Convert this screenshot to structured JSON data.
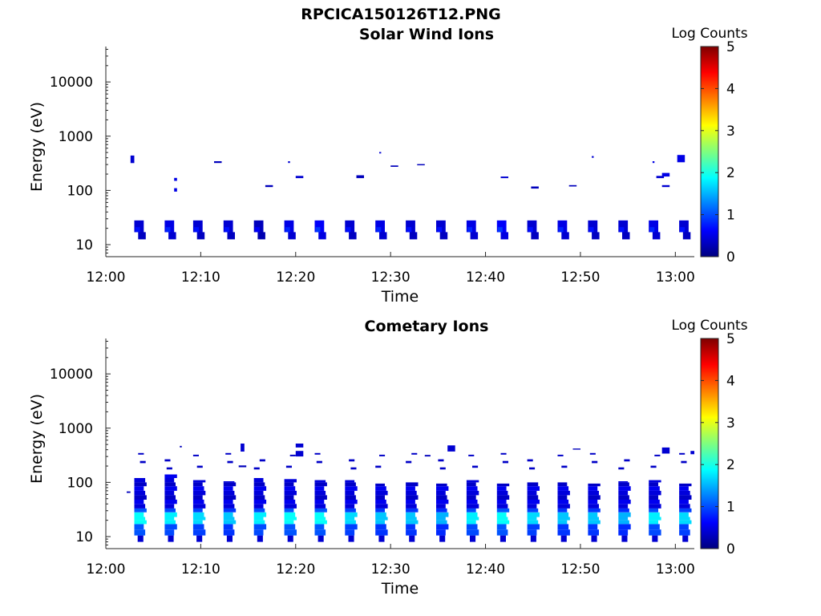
{
  "figure_title": "RPCICA150126T12.PNG",
  "colormap": [
    "#00007f",
    "#0000ff",
    "#007fff",
    "#00ffff",
    "#7fff7f",
    "#ffff00",
    "#ff7f00",
    "#ff0000",
    "#7f0000"
  ],
  "chart_data": [
    {
      "type": "heatmap",
      "title": "Solar Wind Ions",
      "xlabel": "Time",
      "ylabel": "Energy (eV)",
      "y_scale": "log",
      "x_range": [
        "12:00",
        "13:02"
      ],
      "y_range": [
        6,
        45000
      ],
      "x_ticks": [
        "12:00",
        "12:10",
        "12:20",
        "12:30",
        "12:40",
        "12:50",
        "13:00"
      ],
      "y_ticks": [
        "10",
        "100",
        "1000",
        "10000"
      ],
      "colorbar": {
        "label": "Log Counts",
        "range": [
          0,
          5
        ],
        "ticks": [
          "0",
          "1",
          "2",
          "3",
          "4",
          "5"
        ]
      },
      "blocks": [
        {
          "t0": "12:02:36",
          "t1": "12:03:00",
          "e0": 320,
          "e1": 440,
          "v": 0.4
        },
        {
          "t0": "12:07:12",
          "t1": "12:07:30",
          "e0": 150,
          "e1": 170,
          "v": 0.5
        },
        {
          "t0": "12:07:12",
          "t1": "12:07:30",
          "e0": 95,
          "e1": 110,
          "v": 0.5
        },
        {
          "t0": "12:11:24",
          "t1": "12:12:12",
          "e0": 320,
          "e1": 345,
          "v": 0.3
        },
        {
          "t0": "12:16:48",
          "t1": "12:17:36",
          "e0": 115,
          "e1": 125,
          "v": 0.3
        },
        {
          "t0": "12:19:12",
          "t1": "12:19:24",
          "e0": 320,
          "e1": 345,
          "v": 0.4
        },
        {
          "t0": "12:20:00",
          "t1": "12:20:48",
          "e0": 168,
          "e1": 185,
          "v": 0.4
        },
        {
          "t0": "12:26:24",
          "t1": "12:27:12",
          "e0": 168,
          "e1": 190,
          "v": 0.3
        },
        {
          "t0": "12:28:48",
          "t1": "12:29:00",
          "e0": 480,
          "e1": 510,
          "v": 0.4
        },
        {
          "t0": "12:30:00",
          "t1": "12:30:48",
          "e0": 272,
          "e1": 288,
          "v": 0.3
        },
        {
          "t0": "12:32:48",
          "t1": "12:33:36",
          "e0": 290,
          "e1": 305,
          "v": 0.3
        },
        {
          "t0": "12:41:36",
          "t1": "12:42:24",
          "e0": 168,
          "e1": 180,
          "v": 0.4
        },
        {
          "t0": "12:44:48",
          "t1": "12:45:36",
          "e0": 108,
          "e1": 118,
          "v": 0.3
        },
        {
          "t0": "12:48:48",
          "t1": "12:49:36",
          "e0": 118,
          "e1": 125,
          "v": 0.3
        },
        {
          "t0": "12:51:12",
          "t1": "12:51:24",
          "e0": 400,
          "e1": 430,
          "v": 0.4
        },
        {
          "t0": "12:57:36",
          "t1": "12:57:48",
          "e0": 320,
          "e1": 345,
          "v": 0.5
        },
        {
          "t0": "12:58:00",
          "t1": "12:58:48",
          "e0": 168,
          "e1": 185,
          "v": 0.4
        },
        {
          "t0": "12:58:36",
          "t1": "12:59:24",
          "e0": 180,
          "e1": 210,
          "v": 0.5
        },
        {
          "t0": "12:58:36",
          "t1": "12:59:24",
          "e0": 115,
          "e1": 125,
          "v": 0.4
        },
        {
          "t0": "13:00:12",
          "t1": "13:01:00",
          "e0": 330,
          "e1": 450,
          "v": 0.5
        }
      ],
      "low_band_starts": [
        "12:03:00",
        "12:06:12",
        "12:09:12",
        "12:12:24",
        "12:15:36",
        "12:18:48",
        "12:22:00",
        "12:25:12",
        "12:28:24",
        "12:31:36",
        "12:34:48",
        "12:38:00",
        "12:41:12",
        "12:44:24",
        "12:47:36",
        "12:50:48",
        "12:54:00",
        "12:57:12",
        "13:00:24"
      ],
      "low_band_levels": [
        0.4,
        0.5,
        0.4,
        0.4,
        0.3,
        0.5,
        0.6,
        0.4,
        0.5,
        0.4,
        0.4,
        0.5,
        0.6,
        0.4,
        0.5,
        0.4,
        0.4,
        0.5,
        0.4
      ]
    },
    {
      "type": "heatmap",
      "title": "Cometary Ions",
      "xlabel": "Time",
      "ylabel": "Energy (eV)",
      "y_scale": "log",
      "x_range": [
        "12:00",
        "13:02"
      ],
      "y_range": [
        6,
        45000
      ],
      "x_ticks": [
        "12:00",
        "12:10",
        "12:20",
        "12:30",
        "12:40",
        "12:50",
        "13:00"
      ],
      "y_ticks": [
        "10",
        "100",
        "1000",
        "10000"
      ],
      "colorbar": {
        "label": "Log Counts",
        "range": [
          0,
          5
        ],
        "ticks": [
          "0",
          "1",
          "2",
          "3",
          "4",
          "5"
        ]
      },
      "cycle_starts": [
        "12:03:00",
        "12:06:12",
        "12:09:12",
        "12:12:24",
        "12:15:36",
        "12:18:48",
        "12:22:00",
        "12:25:12",
        "12:28:24",
        "12:31:36",
        "12:34:48",
        "12:38:00",
        "12:41:12",
        "12:44:24",
        "12:47:36",
        "12:50:48",
        "12:54:00",
        "12:57:12",
        "13:00:24"
      ],
      "cycle_tops": [
        120,
        140,
        110,
        105,
        120,
        115,
        110,
        110,
        95,
        100,
        95,
        110,
        95,
        100,
        100,
        95,
        105,
        110,
        95
      ],
      "cycle_peaks": [
        1.9,
        1.8,
        1.7,
        1.6,
        1.8,
        1.9,
        1.9,
        1.7,
        1.6,
        1.6,
        1.5,
        1.8,
        1.9,
        1.7,
        1.6,
        1.6,
        1.5,
        1.8,
        1.7
      ],
      "blocks": [
        {
          "t0": "12:14:12",
          "t1": "12:14:36",
          "e0": 370,
          "e1": 520,
          "v": 0.4
        },
        {
          "t0": "12:14:00",
          "t1": "12:14:48",
          "e0": 190,
          "e1": 205,
          "v": 0.3
        },
        {
          "t0": "12:20:00",
          "t1": "12:20:48",
          "e0": 440,
          "e1": 520,
          "v": 0.4
        },
        {
          "t0": "12:20:00",
          "t1": "12:20:48",
          "e0": 300,
          "e1": 380,
          "v": 0.4
        },
        {
          "t0": "12:33:36",
          "t1": "12:34:12",
          "e0": 300,
          "e1": 320,
          "v": 0.3
        },
        {
          "t0": "12:36:00",
          "t1": "12:36:48",
          "e0": 370,
          "e1": 480,
          "v": 0.4
        },
        {
          "t0": "12:49:12",
          "t1": "12:50:00",
          "e0": 400,
          "e1": 420,
          "v": 0.3
        },
        {
          "t0": "12:58:36",
          "t1": "12:59:24",
          "e0": 340,
          "e1": 440,
          "v": 0.4
        },
        {
          "t0": "13:01:36",
          "t1": "13:02:00",
          "e0": 330,
          "e1": 380,
          "v": 0.4
        },
        {
          "t0": "12:02:12",
          "t1": "12:02:36",
          "e0": 64,
          "e1": 68,
          "v": 0.3
        },
        {
          "t0": "12:07:48",
          "t1": "12:08:00",
          "e0": 440,
          "e1": 470,
          "v": 0.3
        }
      ]
    }
  ]
}
